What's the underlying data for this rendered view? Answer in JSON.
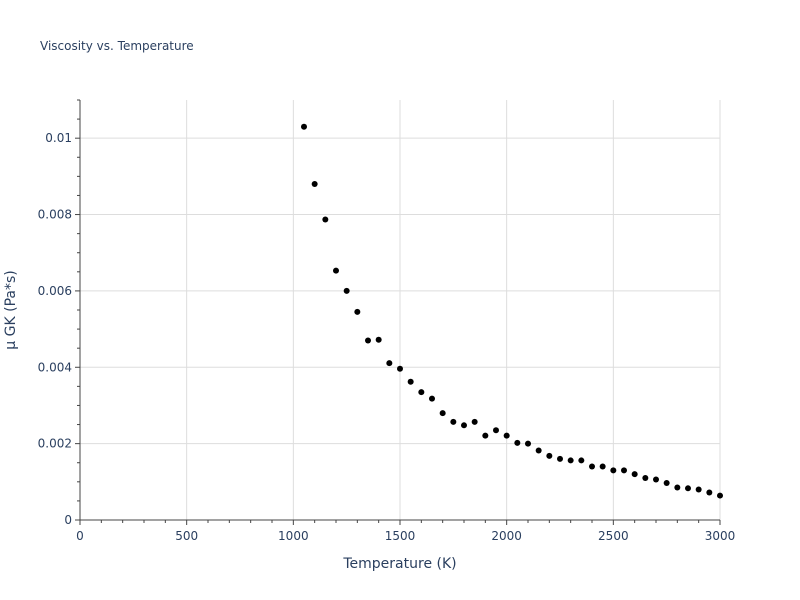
{
  "chart_data": {
    "type": "scatter",
    "title": "Viscosity vs. Temperature",
    "xlabel": "Temperature (K)",
    "ylabel": "μ GK (Pa*s)",
    "xlim": [
      0,
      3000
    ],
    "ylim": [
      0,
      0.011
    ],
    "x_ticks": [
      0,
      500,
      1000,
      1500,
      2000,
      2500,
      3000
    ],
    "x_tick_labels": [
      "0",
      "500",
      "1000",
      "1500",
      "2000",
      "2500",
      "3000"
    ],
    "y_ticks": [
      0,
      0.002,
      0.004,
      0.006,
      0.008,
      0.01
    ],
    "y_tick_labels": [
      "0",
      "0.002",
      "0.004",
      "0.006",
      "0.008",
      "0.01"
    ],
    "grid": true,
    "marker_color": "#000000",
    "series": [
      {
        "x": [
          1050,
          1100,
          1150,
          1200,
          1250,
          1300,
          1350,
          1400,
          1450,
          1500,
          1550,
          1600,
          1650,
          1700,
          1750,
          1800,
          1850,
          1900,
          1950,
          2000,
          2050,
          2100,
          2150,
          2200,
          2250,
          2300,
          2350,
          2400,
          2450,
          2500,
          2550,
          2600,
          2650,
          2700,
          2750,
          2800,
          2850,
          2900,
          2950,
          3000
        ],
        "y": [
          0.0103,
          0.0088,
          0.00787,
          0.00653,
          0.006,
          0.00545,
          0.0047,
          0.00472,
          0.00411,
          0.00396,
          0.00362,
          0.00335,
          0.00318,
          0.0028,
          0.00257,
          0.00248,
          0.00257,
          0.00221,
          0.00235,
          0.00221,
          0.00202,
          0.002,
          0.00182,
          0.00168,
          0.0016,
          0.00156,
          0.00156,
          0.0014,
          0.0014,
          0.0013,
          0.0013,
          0.0012,
          0.0011,
          0.00106,
          0.00097,
          0.00085,
          0.00083,
          0.0008,
          0.00072,
          0.00064
        ]
      }
    ]
  }
}
